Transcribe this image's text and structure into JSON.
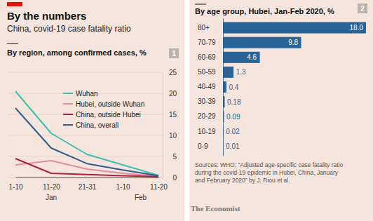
{
  "header": {
    "title": "By the numbers",
    "subtitle": "China, covid-19 case fatality ratio"
  },
  "chart_data": [
    {
      "type": "line",
      "title": "By region, among confirmed cases, %",
      "panel": "1",
      "categories": [
        "1-10",
        "11-20",
        "21-31",
        "1-10",
        "11-20"
      ],
      "x_groups": [
        {
          "label": "Jan",
          "categories": [
            0,
            1,
            2
          ]
        },
        {
          "label": "Feb",
          "categories": [
            3,
            4
          ]
        }
      ],
      "series": [
        {
          "name": "Wuhan",
          "color": "#3fbfb2",
          "values": [
            20.5,
            10.5,
            5.5,
            3,
            0.5
          ]
        },
        {
          "name": "Hubei, outside Wuhan",
          "color": "#e08fa0",
          "values": [
            3,
            4,
            2,
            1,
            0.3
          ]
        },
        {
          "name": "China, outside Hubei",
          "color": "#a8233b",
          "values": [
            4.5,
            1,
            0.7,
            0.4,
            0.2
          ]
        },
        {
          "name": "China, overall",
          "color": "#2d5d8f",
          "values": [
            16.5,
            7,
            3.3,
            1.8,
            0.4
          ]
        }
      ],
      "ylim": [
        0,
        25
      ],
      "yticks": [
        0,
        5,
        10,
        15,
        20,
        25
      ],
      "grid": true,
      "legend": "top"
    },
    {
      "type": "bar",
      "orientation": "horizontal",
      "title": "By age group, Hubei, Jan-Feb 2020, %",
      "panel": "2",
      "categories": [
        "80+",
        "70-79",
        "60-69",
        "50-59",
        "40-49",
        "30-39",
        "20-29",
        "10-19",
        "0-9"
      ],
      "values": [
        18,
        9.8,
        4.6,
        1.3,
        0.4,
        0.18,
        0.09,
        0.02,
        0.01
      ],
      "value_labels": [
        "18.0",
        "9.8",
        "4.6",
        "1.3",
        "0.4",
        "0.18",
        "0.09",
        "0.02",
        "0.01"
      ],
      "color": "#2a6496",
      "xlim": [
        0,
        18
      ],
      "data_labels": true,
      "tick_labels": "y",
      "source": [
        "Sources: WHO; “Adjusted age-specific case fatality ratio",
        "during the covid-19 epidemic in Hubei, China, January",
        "and February 2020” by J. Riou et al."
      ]
    }
  ],
  "credit": "The Economist"
}
